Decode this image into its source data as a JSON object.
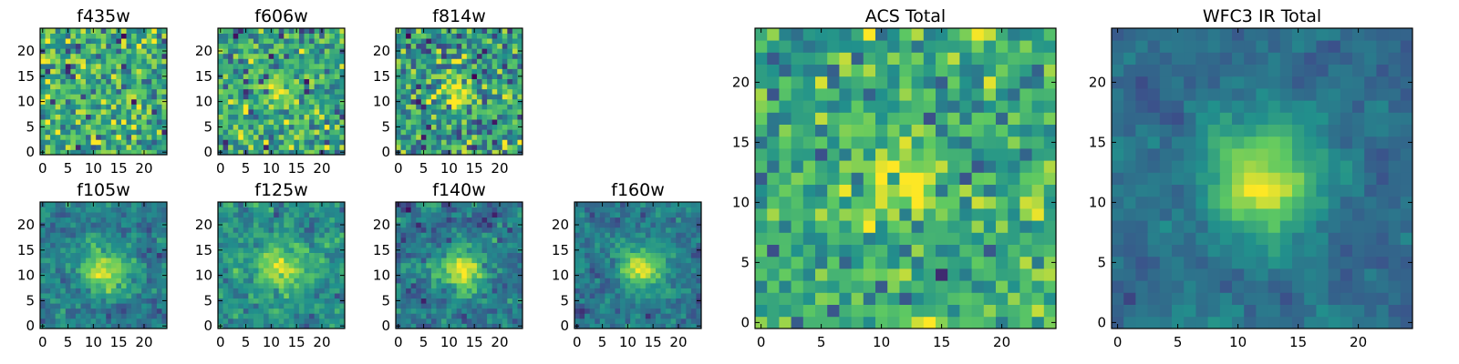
{
  "figure": {
    "colormap": "viridis",
    "colors": [
      "#440154",
      "#3b528b",
      "#21918c",
      "#5ec962",
      "#fde725"
    ]
  },
  "chart_data": [
    {
      "type": "heatmap",
      "title": "f435w",
      "size": 25,
      "xticks": [
        0,
        5,
        10,
        15,
        20
      ],
      "yticks": [
        0,
        5,
        10,
        15,
        20
      ],
      "xlim": [
        -0.5,
        24.5
      ],
      "ylim": [
        -0.5,
        24.5
      ],
      "source_amplitude": 0.05,
      "source_center": [
        12,
        12
      ],
      "source_width": 2.5,
      "background": 0.62,
      "noise": 0.2,
      "seed": 11,
      "smoothing": 0,
      "vmin": 0,
      "vmax": 1
    },
    {
      "type": "heatmap",
      "title": "f606w",
      "size": 25,
      "xticks": [
        0,
        5,
        10,
        15,
        20
      ],
      "yticks": [
        0,
        5,
        10,
        15,
        20
      ],
      "xlim": [
        -0.5,
        24.5
      ],
      "ylim": [
        -0.5,
        24.5
      ],
      "source_amplitude": 0.3,
      "source_center": [
        11.5,
        12
      ],
      "source_width": 2.2,
      "background": 0.58,
      "noise": 0.18,
      "seed": 23,
      "smoothing": 0,
      "vmin": 0,
      "vmax": 1
    },
    {
      "type": "heatmap",
      "title": "f814w",
      "size": 25,
      "xticks": [
        0,
        5,
        10,
        15,
        20
      ],
      "yticks": [
        0,
        5,
        10,
        15,
        20
      ],
      "xlim": [
        -0.5,
        24.5
      ],
      "ylim": [
        -0.5,
        24.5
      ],
      "source_amplitude": 0.35,
      "source_center": [
        12,
        12
      ],
      "source_width": 2.2,
      "background": 0.55,
      "noise": 0.2,
      "seed": 37,
      "smoothing": 0,
      "vmin": 0,
      "vmax": 1
    },
    {
      "type": "heatmap",
      "title": "f105w",
      "size": 25,
      "xticks": [
        0,
        5,
        10,
        15,
        20
      ],
      "yticks": [
        0,
        5,
        10,
        15,
        20
      ],
      "xlim": [
        -0.5,
        24.5
      ],
      "ylim": [
        -0.5,
        24.5
      ],
      "source_amplitude": 0.55,
      "source_center": [
        12.5,
        11
      ],
      "source_width": 3.0,
      "background": 0.42,
      "noise": 0.12,
      "seed": 41,
      "smoothing": 0.35,
      "vmin": 0,
      "vmax": 1
    },
    {
      "type": "heatmap",
      "title": "f125w",
      "size": 25,
      "xticks": [
        0,
        5,
        10,
        15,
        20
      ],
      "yticks": [
        0,
        5,
        10,
        15,
        20
      ],
      "xlim": [
        -0.5,
        24.5
      ],
      "ylim": [
        -0.5,
        24.5
      ],
      "source_amplitude": 0.4,
      "source_center": [
        12,
        11.5
      ],
      "source_width": 3.2,
      "background": 0.5,
      "noise": 0.13,
      "seed": 53,
      "smoothing": 0.35,
      "vmin": 0,
      "vmax": 1
    },
    {
      "type": "heatmap",
      "title": "f140w",
      "size": 25,
      "xticks": [
        0,
        5,
        10,
        15,
        20
      ],
      "yticks": [
        0,
        5,
        10,
        15,
        20
      ],
      "xlim": [
        -0.5,
        24.5
      ],
      "ylim": [
        -0.5,
        24.5
      ],
      "source_amplitude": 0.58,
      "source_center": [
        12.5,
        11
      ],
      "source_width": 2.8,
      "background": 0.38,
      "noise": 0.13,
      "seed": 67,
      "smoothing": 0.35,
      "vmin": 0,
      "vmax": 1
    },
    {
      "type": "heatmap",
      "title": "f160w",
      "size": 25,
      "xticks": [
        0,
        5,
        10,
        15,
        20
      ],
      "yticks": [
        0,
        5,
        10,
        15,
        20
      ],
      "xlim": [
        -0.5,
        24.5
      ],
      "ylim": [
        -0.5,
        24.5
      ],
      "source_amplitude": 0.6,
      "source_center": [
        12.5,
        11.5
      ],
      "source_width": 2.8,
      "background": 0.4,
      "noise": 0.11,
      "seed": 79,
      "smoothing": 0.35,
      "vmin": 0,
      "vmax": 1
    },
    {
      "type": "heatmap",
      "title": "ACS Total",
      "size": 25,
      "xticks": [
        0,
        5,
        10,
        15,
        20
      ],
      "yticks": [
        0,
        5,
        10,
        15,
        20
      ],
      "xlim": [
        -0.5,
        24.5
      ],
      "ylim": [
        -0.5,
        24.5
      ],
      "source_amplitude": 0.32,
      "source_center": [
        11.5,
        11.5
      ],
      "source_width": 2.4,
      "background": 0.6,
      "noise": 0.16,
      "seed": 97,
      "smoothing": 0,
      "vmin": 0,
      "vmax": 1
    },
    {
      "type": "heatmap",
      "title": "WFC3 IR Total",
      "size": 25,
      "xticks": [
        0,
        5,
        10,
        15,
        20
      ],
      "yticks": [
        0,
        5,
        10,
        15,
        20
      ],
      "xlim": [
        -0.5,
        24.5
      ],
      "ylim": [
        -0.5,
        24.5
      ],
      "source_amplitude": 0.62,
      "source_center": [
        12,
        12
      ],
      "source_width": 3.2,
      "background": 0.36,
      "noise": 0.08,
      "seed": 113,
      "smoothing": 0.5,
      "vmin": 0,
      "vmax": 1
    }
  ]
}
